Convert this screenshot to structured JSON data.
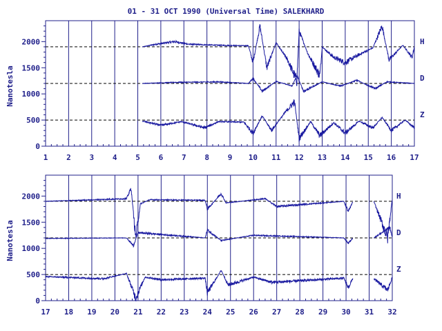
{
  "chart_data": {
    "type": "line",
    "title": "01 - 31 OCT 1990 (Universal Time) SALEKHARD",
    "ylabel": "Nanotesla",
    "line_color": "#1a1aa0",
    "axis_color": "#1f1f8a",
    "yticks": [
      "0",
      "500",
      "1000",
      "1500",
      "2000"
    ],
    "ylim": [
      0,
      2400
    ],
    "baselines": [
      {
        "name": "H",
        "value": 1900
      },
      {
        "name": "D",
        "value": 1200
      },
      {
        "name": "Z",
        "value": 500
      }
    ],
    "panels": [
      {
        "xlim": [
          1,
          17
        ],
        "xticks": [
          "1",
          "2",
          "3",
          "4",
          "5",
          "6",
          "7",
          "8",
          "9",
          "10",
          "11",
          "12",
          "13",
          "14",
          "15",
          "16",
          "17"
        ],
        "data_start_day": 5.2,
        "data_end_day": 17.0,
        "series": {
          "H": [
            {
              "x": 5.2,
              "y": 1900
            },
            {
              "x": 5.8,
              "y": 1950
            },
            {
              "x": 6.6,
              "y": 2000
            },
            {
              "x": 7.2,
              "y": 1950
            },
            {
              "x": 8.5,
              "y": 1930
            },
            {
              "x": 9.8,
              "y": 1920
            },
            {
              "x": 10.0,
              "y": 1600
            },
            {
              "x": 10.3,
              "y": 2300
            },
            {
              "x": 10.6,
              "y": 1500
            },
            {
              "x": 11.0,
              "y": 1980
            },
            {
              "x": 11.5,
              "y": 1650
            },
            {
              "x": 11.9,
              "y": 1250
            },
            {
              "x": 12.0,
              "y": 2200
            },
            {
              "x": 12.4,
              "y": 1750
            },
            {
              "x": 12.9,
              "y": 1350
            },
            {
              "x": 13.0,
              "y": 1900
            },
            {
              "x": 13.5,
              "y": 1700
            },
            {
              "x": 14.0,
              "y": 1600
            },
            {
              "x": 14.6,
              "y": 1750
            },
            {
              "x": 15.2,
              "y": 1880
            },
            {
              "x": 15.6,
              "y": 2300
            },
            {
              "x": 15.9,
              "y": 1650
            },
            {
              "x": 16.5,
              "y": 1930
            },
            {
              "x": 16.9,
              "y": 1700
            },
            {
              "x": 17.0,
              "y": 1900
            }
          ],
          "D": [
            {
              "x": 5.2,
              "y": 1200
            },
            {
              "x": 6.6,
              "y": 1220
            },
            {
              "x": 8.5,
              "y": 1230
            },
            {
              "x": 9.8,
              "y": 1200
            },
            {
              "x": 10.0,
              "y": 1300
            },
            {
              "x": 10.4,
              "y": 1050
            },
            {
              "x": 11.0,
              "y": 1240
            },
            {
              "x": 11.7,
              "y": 1150
            },
            {
              "x": 11.9,
              "y": 1350
            },
            {
              "x": 12.2,
              "y": 1050
            },
            {
              "x": 13.0,
              "y": 1230
            },
            {
              "x": 13.8,
              "y": 1150
            },
            {
              "x": 14.5,
              "y": 1260
            },
            {
              "x": 15.3,
              "y": 1100
            },
            {
              "x": 15.8,
              "y": 1230
            },
            {
              "x": 17.0,
              "y": 1200
            }
          ],
          "Z": [
            {
              "x": 5.2,
              "y": 480
            },
            {
              "x": 6.0,
              "y": 400
            },
            {
              "x": 6.9,
              "y": 470
            },
            {
              "x": 7.9,
              "y": 350
            },
            {
              "x": 8.5,
              "y": 470
            },
            {
              "x": 9.6,
              "y": 460
            },
            {
              "x": 10.0,
              "y": 250
            },
            {
              "x": 10.4,
              "y": 580
            },
            {
              "x": 10.8,
              "y": 300
            },
            {
              "x": 11.4,
              "y": 650
            },
            {
              "x": 11.8,
              "y": 850
            },
            {
              "x": 12.0,
              "y": 150
            },
            {
              "x": 12.5,
              "y": 470
            },
            {
              "x": 12.9,
              "y": 200
            },
            {
              "x": 13.5,
              "y": 450
            },
            {
              "x": 14.0,
              "y": 250
            },
            {
              "x": 14.6,
              "y": 480
            },
            {
              "x": 15.2,
              "y": 350
            },
            {
              "x": 15.6,
              "y": 550
            },
            {
              "x": 16.0,
              "y": 300
            },
            {
              "x": 16.6,
              "y": 500
            },
            {
              "x": 17.0,
              "y": 350
            }
          ]
        }
      },
      {
        "xlim": [
          17,
          32
        ],
        "xticks": [
          "17",
          "18",
          "19",
          "20",
          "21",
          "22",
          "23",
          "24",
          "25",
          "26",
          "27",
          "28",
          "29",
          "30",
          "31",
          "32"
        ],
        "data_start_day": 17.0,
        "data_end_day": 32.0,
        "gap": [
          30.3,
          31.2
        ],
        "series": {
          "H": [
            {
              "x": 17.0,
              "y": 1900
            },
            {
              "x": 18.5,
              "y": 1920
            },
            {
              "x": 20.5,
              "y": 1950
            },
            {
              "x": 20.7,
              "y": 2150
            },
            {
              "x": 20.9,
              "y": 1200
            },
            {
              "x": 21.1,
              "y": 1850
            },
            {
              "x": 21.5,
              "y": 1930
            },
            {
              "x": 23.9,
              "y": 1920
            },
            {
              "x": 24.0,
              "y": 1750
            },
            {
              "x": 24.6,
              "y": 2050
            },
            {
              "x": 24.8,
              "y": 1870
            },
            {
              "x": 26.5,
              "y": 1950
            },
            {
              "x": 27.0,
              "y": 1800
            },
            {
              "x": 29.9,
              "y": 1900
            },
            {
              "x": 30.1,
              "y": 1700
            },
            {
              "x": 30.3,
              "y": 1900
            },
            {
              "x": 31.2,
              "y": 1900
            },
            {
              "x": 31.8,
              "y": 1200
            },
            {
              "x": 32.0,
              "y": 1950
            }
          ],
          "D": [
            {
              "x": 17.0,
              "y": 1190
            },
            {
              "x": 20.5,
              "y": 1200
            },
            {
              "x": 20.8,
              "y": 1050
            },
            {
              "x": 21.0,
              "y": 1300
            },
            {
              "x": 23.9,
              "y": 1200
            },
            {
              "x": 24.0,
              "y": 1350
            },
            {
              "x": 24.6,
              "y": 1150
            },
            {
              "x": 26.0,
              "y": 1250
            },
            {
              "x": 29.9,
              "y": 1200
            },
            {
              "x": 30.1,
              "y": 1100
            },
            {
              "x": 30.3,
              "y": 1200
            },
            {
              "x": 31.2,
              "y": 1200
            },
            {
              "x": 31.9,
              "y": 1400
            },
            {
              "x": 32.0,
              "y": 1200
            }
          ],
          "Z": [
            {
              "x": 17.0,
              "y": 460
            },
            {
              "x": 19.5,
              "y": 420
            },
            {
              "x": 20.5,
              "y": 520
            },
            {
              "x": 20.9,
              "y": 50
            },
            {
              "x": 21.3,
              "y": 450
            },
            {
              "x": 22.0,
              "y": 400
            },
            {
              "x": 23.9,
              "y": 430
            },
            {
              "x": 24.0,
              "y": 150
            },
            {
              "x": 24.6,
              "y": 580
            },
            {
              "x": 24.9,
              "y": 300
            },
            {
              "x": 26.0,
              "y": 450
            },
            {
              "x": 26.8,
              "y": 350
            },
            {
              "x": 29.9,
              "y": 430
            },
            {
              "x": 30.1,
              "y": 250
            },
            {
              "x": 30.3,
              "y": 430
            },
            {
              "x": 31.2,
              "y": 420
            },
            {
              "x": 31.8,
              "y": 200
            },
            {
              "x": 32.0,
              "y": 450
            }
          ]
        }
      }
    ]
  }
}
